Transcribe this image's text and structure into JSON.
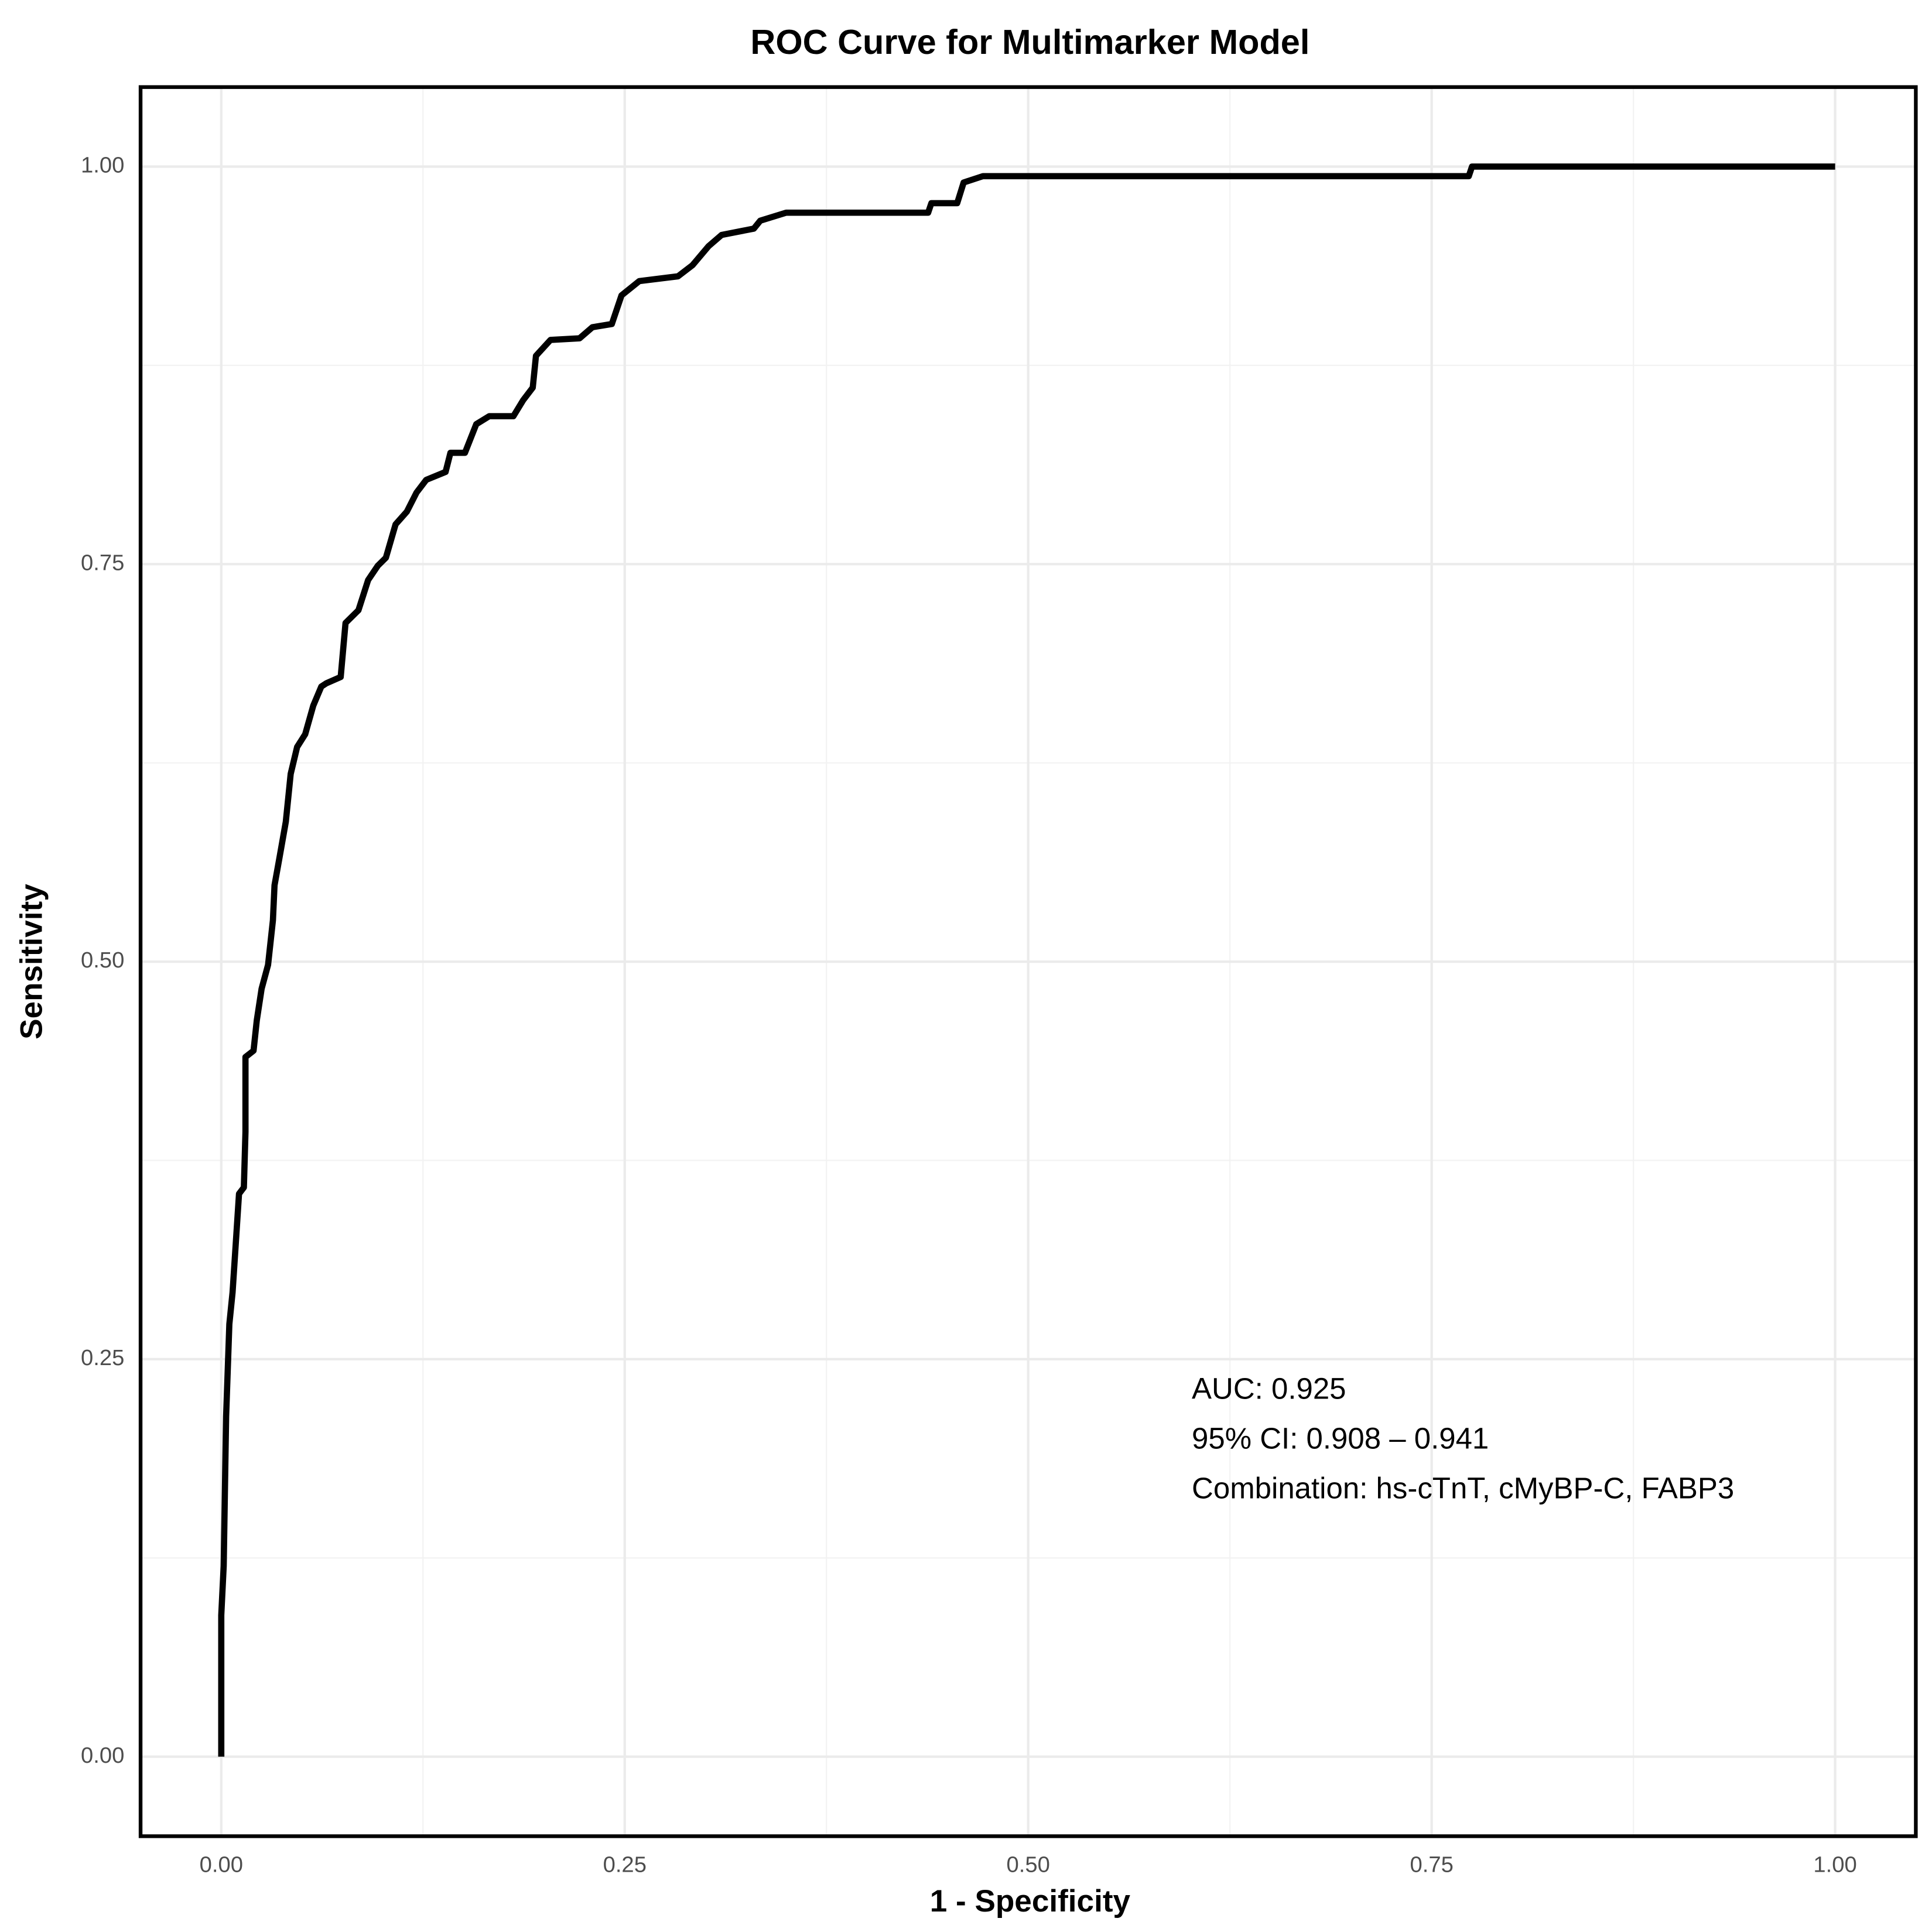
{
  "chart_data": {
    "type": "line",
    "title": "ROC Curve for Multimarker Model",
    "x_label": "1 - Specificity",
    "y_label": "Sensitivity",
    "x": [
      0,
      0,
      0.0015,
      0.003,
      0.005,
      0.007,
      0.009,
      0.011,
      0.014,
      0.015,
      0.015,
      0.02,
      0.022,
      0.025,
      0.029,
      0.032,
      0.033,
      0.036,
      0.04,
      0.043,
      0.047,
      0.052,
      0.057,
      0.062,
      0.065,
      0.074,
      0.077,
      0.085,
      0.091,
      0.097,
      0.102,
      0.108,
      0.115,
      0.121,
      0.127,
      0.139,
      0.142,
      0.151,
      0.158,
      0.166,
      0.181,
      0.187,
      0.193,
      0.195,
      0.204,
      0.222,
      0.23,
      0.242,
      0.248,
      0.259,
      0.283,
      0.292,
      0.302,
      0.31,
      0.33,
      0.334,
      0.35,
      0.438,
      0.44,
      0.456,
      0.46,
      0.472,
      0.773,
      0.775,
      1
    ],
    "series": [
      {
        "name": "Multimarker",
        "color": "#000000",
        "values": [
          0,
          0.089,
          0.12,
          0.214,
          0.272,
          0.292,
          0.323,
          0.354,
          0.358,
          0.393,
          0.44,
          0.444,
          0.463,
          0.483,
          0.498,
          0.526,
          0.548,
          0.565,
          0.588,
          0.618,
          0.635,
          0.643,
          0.661,
          0.673,
          0.675,
          0.679,
          0.713,
          0.721,
          0.74,
          0.749,
          0.754,
          0.775,
          0.783,
          0.795,
          0.803,
          0.808,
          0.82,
          0.82,
          0.838,
          0.843,
          0.843,
          0.853,
          0.861,
          0.881,
          0.891,
          0.892,
          0.899,
          0.901,
          0.919,
          0.928,
          0.931,
          0.938,
          0.95,
          0.957,
          0.961,
          0.966,
          0.971,
          0.971,
          0.977,
          0.977,
          0.99,
          0.994,
          0.994,
          1.0,
          1.0
        ]
      }
    ],
    "xlim": [
      -0.05,
      1.05
    ],
    "ylim": [
      -0.05,
      1.05
    ],
    "xticks": [
      {
        "value": 0,
        "label": "0.00"
      },
      0.25,
      {
        "value": 0.5,
        "label": "0.50"
      },
      0.75,
      {
        "value": 1,
        "label": "1.00"
      }
    ],
    "yticks": [
      {
        "value": 0,
        "label": "0.00"
      },
      0.25,
      {
        "value": 0.5,
        "label": "0.50"
      },
      0.75,
      {
        "value": 1,
        "label": "1.00"
      }
    ],
    "grid": true,
    "minor_grid": true,
    "annotations": [
      "AUC: 0.925",
      "95% CI: 0.908 – 0.941",
      "Combination: hs-cTnT, cMyBP-C, FABP3"
    ]
  }
}
